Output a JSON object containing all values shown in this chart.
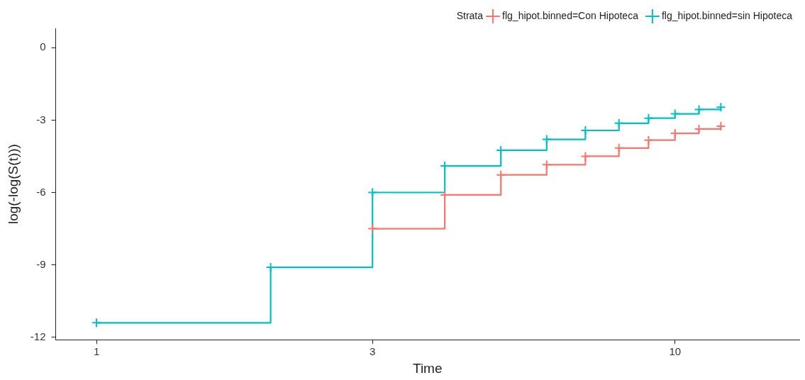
{
  "chart_data": {
    "type": "step",
    "xlabel": "Time",
    "ylabel": "log(-log(S(t)))",
    "legend_title": "Strata",
    "legend": "top right",
    "log": "x",
    "marker": "cross",
    "grid": false,
    "xlim": [
      0.85,
      16.4
    ],
    "xticks": [
      1,
      3,
      10
    ],
    "ylim": [
      -12.1,
      0.8
    ],
    "yticks": [
      -12,
      -9,
      -6,
      -3,
      0
    ],
    "series": [
      {
        "name": "flg_hipot.binned=Con Hipoteca",
        "color": "#f8766d",
        "x": [
          3,
          4,
          5,
          6,
          7,
          8,
          9,
          10,
          11,
          12
        ],
        "values": [
          -7.5,
          -6.1,
          -5.27,
          -4.85,
          -4.5,
          -4.16,
          -3.83,
          -3.55,
          -3.37,
          -3.25
        ]
      },
      {
        "name": "flg_hipot.binned=sin Hipoteca",
        "color": "#00bfc4",
        "x": [
          1,
          2,
          3,
          4,
          5,
          6,
          7,
          8,
          9,
          10,
          11,
          12
        ],
        "values": [
          -11.4,
          -9.1,
          -6.0,
          -4.9,
          -4.25,
          -3.8,
          -3.43,
          -3.13,
          -2.92,
          -2.74,
          -2.56,
          -2.47
        ]
      }
    ]
  }
}
